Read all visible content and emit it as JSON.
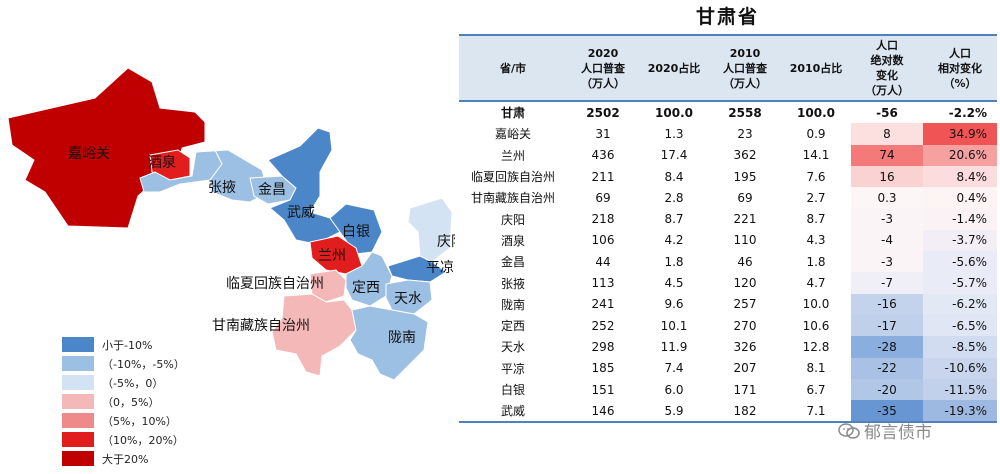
{
  "title": "甘肃省",
  "colors": {
    "lt_m10": "#4a86c8",
    "m10_m5": "#9cbfe4",
    "m5_0": "#d4e3f3",
    "0_5": "#f5b8b8",
    "5_10": "#ee8a8a",
    "10_20": "#e11d1d",
    "gt_20": "#c00000",
    "header_bg": "#dce6f1",
    "rule": "#4f81bd"
  },
  "map": {
    "labels": {
      "jiayuguan": "嘉峪关",
      "jiuquan": "酒泉",
      "zhangye": "张掖",
      "jinchang": "金昌",
      "wuwei": "武威",
      "baiyin": "白银",
      "lanzhou": "兰州",
      "qingyang": "庆阳",
      "pingliang": "平凉",
      "linxia": "临夏回族自治州",
      "dingxi": "定西",
      "tianshui": "天水",
      "gannan": "甘南藏族自治州",
      "longnan": "陇南"
    },
    "legend": [
      {
        "label": "小于-10%",
        "color": "#4a86c8"
      },
      {
        "label": "（-10%，-5%）",
        "color": "#9cbfe4"
      },
      {
        "label": "（-5%，0）",
        "color": "#d4e3f3"
      },
      {
        "label": "（0，5%）",
        "color": "#f5b8b8"
      },
      {
        "label": "（5%，10%）",
        "color": "#ee8a8a"
      },
      {
        "label": "（10%，20%）",
        "color": "#e11d1d"
      },
      {
        "label": "大于20%",
        "color": "#c00000"
      }
    ]
  },
  "table": {
    "headers": [
      [
        "省/市"
      ],
      [
        "2020",
        "人口普查",
        "（万人）"
      ],
      [
        "2020占比"
      ],
      [
        "2010",
        "人口普查",
        "（万人）"
      ],
      [
        "2010占比"
      ],
      [
        "人口",
        "绝对数",
        "变化",
        "（万人）"
      ],
      [
        "人口",
        "相对变化",
        "（%）"
      ]
    ],
    "rows": [
      {
        "name": "甘肃",
        "p2020": "2502",
        "s2020": "100.0",
        "p2010": "2558",
        "s2010": "100.0",
        "abs": "-56",
        "rel": "-2.2%",
        "absColor": "#ffffff",
        "relColor": "#ffffff"
      },
      {
        "name": "嘉峪关",
        "p2020": "31",
        "s2020": "1.3",
        "p2010": "23",
        "s2010": "0.9",
        "abs": "8",
        "rel": "34.9%",
        "absColor": "#fce0e0",
        "relColor": "#f15454"
      },
      {
        "name": "兰州",
        "p2020": "436",
        "s2020": "17.4",
        "p2010": "362",
        "s2010": "14.1",
        "abs": "74",
        "rel": "20.6%",
        "absColor": "#f47a7a",
        "relColor": "#f7a0a0"
      },
      {
        "name": "临夏回族自治州",
        "p2020": "211",
        "s2020": "8.4",
        "p2010": "195",
        "s2010": "7.6",
        "abs": "16",
        "rel": "8.4%",
        "absColor": "#fbd2d2",
        "relColor": "#fcdcdc"
      },
      {
        "name": "甘南藏族自治州",
        "p2020": "69",
        "s2020": "2.8",
        "p2010": "69",
        "s2010": "2.7",
        "abs": "0.3",
        "rel": "0.4%",
        "absColor": "#fdf6f6",
        "relColor": "#fdf4f4"
      },
      {
        "name": "庆阳",
        "p2020": "218",
        "s2020": "8.7",
        "p2010": "221",
        "s2010": "8.7",
        "abs": "-3",
        "rel": "-1.4%",
        "absColor": "#fbf4f6",
        "relColor": "#faf2f5"
      },
      {
        "name": "酒泉",
        "p2020": "106",
        "s2020": "4.2",
        "p2010": "110",
        "s2010": "4.3",
        "abs": "-4",
        "rel": "-3.7%",
        "absColor": "#fbf4f6",
        "relColor": "#f3eef6"
      },
      {
        "name": "金昌",
        "p2020": "44",
        "s2020": "1.8",
        "p2010": "46",
        "s2010": "1.8",
        "abs": "-3",
        "rel": "-5.6%",
        "absColor": "#fbf4f6",
        "relColor": "#e9ecf6"
      },
      {
        "name": "张掖",
        "p2020": "113",
        "s2020": "4.5",
        "p2010": "120",
        "s2010": "4.7",
        "abs": "-7",
        "rel": "-5.7%",
        "absColor": "#f0eff7",
        "relColor": "#e9ecf6"
      },
      {
        "name": "陇南",
        "p2020": "241",
        "s2020": "9.6",
        "p2010": "257",
        "s2010": "10.0",
        "abs": "-16",
        "rel": "-6.2%",
        "absColor": "#c4d3ec",
        "relColor": "#e3e8f5"
      },
      {
        "name": "定西",
        "p2020": "252",
        "s2020": "10.1",
        "p2010": "270",
        "s2010": "10.6",
        "abs": "-17",
        "rel": "-6.5%",
        "absColor": "#bfd0ea",
        "relColor": "#e0e6f4"
      },
      {
        "name": "天水",
        "p2020": "298",
        "s2020": "11.9",
        "p2010": "326",
        "s2010": "12.8",
        "abs": "-28",
        "rel": "-8.5%",
        "absColor": "#8aaedd",
        "relColor": "#d2dcf0"
      },
      {
        "name": "平凉",
        "p2020": "185",
        "s2020": "7.4",
        "p2010": "207",
        "s2010": "8.1",
        "abs": "-22",
        "rel": "-10.6%",
        "absColor": "#a9c1e5",
        "relColor": "#c8d5ed"
      },
      {
        "name": "白银",
        "p2020": "151",
        "s2020": "6.0",
        "p2010": "171",
        "s2010": "6.7",
        "abs": "-20",
        "rel": "-11.5%",
        "absColor": "#b1c7e7",
        "relColor": "#c2d1eb"
      },
      {
        "name": "武威",
        "p2020": "146",
        "s2020": "5.9",
        "p2010": "182",
        "s2010": "7.1",
        "abs": "-35",
        "rel": "-19.3%",
        "absColor": "#6796d3",
        "relColor": "#9db9e2"
      }
    ]
  },
  "watermark": "郁言债市"
}
